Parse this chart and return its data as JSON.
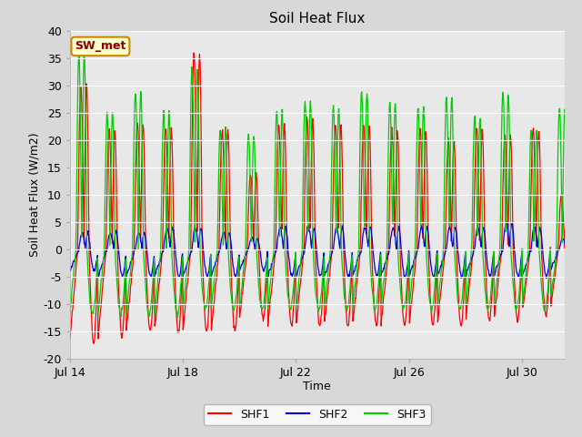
{
  "title": "Soil Heat Flux",
  "xlabel": "Time",
  "ylabel": "Soil Heat Flux (W/m2)",
  "ylim": [
    -20,
    40
  ],
  "yticks": [
    -20,
    -15,
    -10,
    -5,
    0,
    5,
    10,
    15,
    20,
    25,
    30,
    35,
    40
  ],
  "xlim": [
    0,
    17.5
  ],
  "x_tick_positions": [
    0,
    4,
    8,
    12,
    16
  ],
  "x_tick_labels": [
    "Jul 14",
    "Jul 18",
    "Jul 22",
    "Jul 26",
    "Jul 30"
  ],
  "colors": {
    "SHF1": "#ff0000",
    "SHF2": "#0000dd",
    "SHF3": "#00cc00"
  },
  "fig_bg": "#d8d8d8",
  "plot_bg": "#e8e8e8",
  "grid_color": "#ffffff",
  "legend_label": "SW_met",
  "legend_bg": "#ffffcc",
  "legend_border": "#cc8800",
  "legend_text_color": "#8b0000"
}
